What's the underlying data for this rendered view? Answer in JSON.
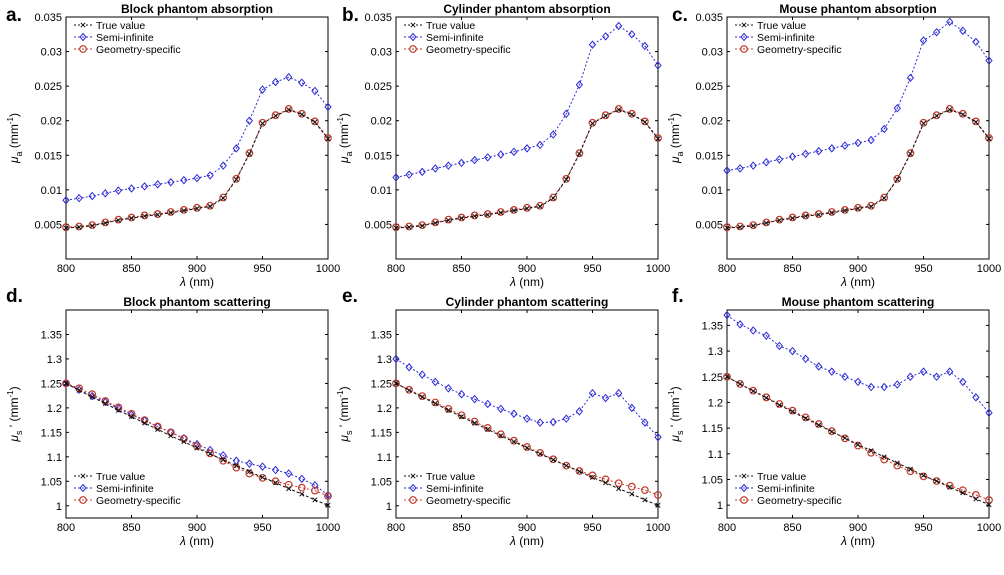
{
  "chart_data": [
    {
      "type": "line",
      "panel_label": "a.",
      "title": "Block phantom absorption",
      "xlabel_symbol": "λ",
      "xlabel_unit": " (nm)",
      "ylabel_symbol": "μ",
      "ylabel_sub": "a",
      "ylabel_pre": "(mm",
      "ylabel_exp": "-1",
      "ylabel_post": ")",
      "xlim": [
        800,
        1000
      ],
      "ylim": [
        0,
        0.035
      ],
      "xticks": [
        "800",
        "850",
        "900",
        "950",
        "1000"
      ],
      "yticks": [
        "0.005",
        "0.01",
        "0.015",
        "0.02",
        "0.025",
        "0.03",
        "0.035"
      ],
      "legend_position": "top-left",
      "x": [
        800,
        810,
        820,
        830,
        840,
        850,
        860,
        870,
        880,
        890,
        900,
        910,
        920,
        930,
        940,
        950,
        960,
        970,
        980,
        990,
        1000
      ],
      "series": [
        {
          "name": "True value",
          "marker": "x",
          "color": "#111111",
          "values": [
            0.0045,
            0.0046,
            0.0048,
            0.0052,
            0.0056,
            0.0059,
            0.0062,
            0.0064,
            0.0067,
            0.007,
            0.0073,
            0.0076,
            0.0088,
            0.0115,
            0.0152,
            0.0196,
            0.0207,
            0.0216,
            0.0209,
            0.0198,
            0.0174
          ]
        },
        {
          "name": "Semi-infinite",
          "marker": "diamond",
          "color": "#2b2bd6",
          "values": [
            0.0085,
            0.0088,
            0.0091,
            0.0095,
            0.0099,
            0.0102,
            0.0105,
            0.0108,
            0.0111,
            0.0114,
            0.0117,
            0.0121,
            0.0135,
            0.016,
            0.02,
            0.0245,
            0.0256,
            0.0263,
            0.0255,
            0.0243,
            0.022
          ]
        },
        {
          "name": "Geometry-specific",
          "marker": "circle",
          "color": "#c0392b",
          "values": [
            0.0046,
            0.0047,
            0.0049,
            0.0053,
            0.0057,
            0.006,
            0.0063,
            0.0065,
            0.0068,
            0.0071,
            0.0074,
            0.0077,
            0.0089,
            0.0116,
            0.0153,
            0.0197,
            0.0208,
            0.0217,
            0.021,
            0.0199,
            0.0175
          ]
        }
      ]
    },
    {
      "type": "line",
      "panel_label": "b.",
      "title": "Cylinder phantom absorption",
      "xlabel_symbol": "λ",
      "xlabel_unit": " (nm)",
      "ylabel_symbol": "μ",
      "ylabel_sub": "a",
      "ylabel_pre": "(mm",
      "ylabel_exp": "-1",
      "ylabel_post": ")",
      "xlim": [
        800,
        1000
      ],
      "ylim": [
        0,
        0.035
      ],
      "xticks": [
        "800",
        "850",
        "900",
        "950",
        "1000"
      ],
      "yticks": [
        "0.005",
        "0.01",
        "0.015",
        "0.02",
        "0.025",
        "0.03",
        "0.035"
      ],
      "legend_position": "top-left",
      "x": [
        800,
        810,
        820,
        830,
        840,
        850,
        860,
        870,
        880,
        890,
        900,
        910,
        920,
        930,
        940,
        950,
        960,
        970,
        980,
        990,
        1000
      ],
      "series": [
        {
          "name": "True value",
          "marker": "x",
          "color": "#111111",
          "values": [
            0.0045,
            0.0046,
            0.0048,
            0.0052,
            0.0056,
            0.0059,
            0.0062,
            0.0064,
            0.0067,
            0.007,
            0.0073,
            0.0076,
            0.0088,
            0.0115,
            0.0152,
            0.0196,
            0.0207,
            0.0216,
            0.0209,
            0.0198,
            0.0174
          ]
        },
        {
          "name": "Semi-infinite",
          "marker": "diamond",
          "color": "#2b2bd6",
          "values": [
            0.0118,
            0.0122,
            0.0126,
            0.0131,
            0.0135,
            0.0139,
            0.0143,
            0.0147,
            0.0151,
            0.0155,
            0.016,
            0.0165,
            0.018,
            0.021,
            0.0252,
            0.031,
            0.0322,
            0.0337,
            0.0325,
            0.0308,
            0.028
          ]
        },
        {
          "name": "Geometry-specific",
          "marker": "circle",
          "color": "#c0392b",
          "values": [
            0.0046,
            0.0047,
            0.0049,
            0.0053,
            0.0057,
            0.006,
            0.0063,
            0.0065,
            0.0068,
            0.0071,
            0.0074,
            0.0077,
            0.0089,
            0.0116,
            0.0153,
            0.0197,
            0.0208,
            0.0217,
            0.021,
            0.0199,
            0.0175
          ]
        }
      ]
    },
    {
      "type": "line",
      "panel_label": "c.",
      "title": "Mouse phantom absorption",
      "xlabel_symbol": "λ",
      "xlabel_unit": " (nm)",
      "ylabel_symbol": "μ",
      "ylabel_sub": "a",
      "ylabel_pre": "(mm",
      "ylabel_exp": "-1",
      "ylabel_post": ")",
      "xlim": [
        800,
        1000
      ],
      "ylim": [
        0,
        0.035
      ],
      "xticks": [
        "800",
        "850",
        "900",
        "950",
        "1000"
      ],
      "yticks": [
        "0.005",
        "0.01",
        "0.015",
        "0.02",
        "0.025",
        "0.03",
        "0.035"
      ],
      "legend_position": "top-left",
      "x": [
        800,
        810,
        820,
        830,
        840,
        850,
        860,
        870,
        880,
        890,
        900,
        910,
        920,
        930,
        940,
        950,
        960,
        970,
        980,
        990,
        1000
      ],
      "series": [
        {
          "name": "True value",
          "marker": "x",
          "color": "#111111",
          "values": [
            0.0045,
            0.0046,
            0.0048,
            0.0052,
            0.0056,
            0.0059,
            0.0062,
            0.0064,
            0.0067,
            0.007,
            0.0073,
            0.0076,
            0.0088,
            0.0115,
            0.0152,
            0.0196,
            0.0207,
            0.0216,
            0.0209,
            0.0198,
            0.0174
          ]
        },
        {
          "name": "Semi-infinite",
          "marker": "diamond",
          "color": "#2b2bd6",
          "values": [
            0.0128,
            0.0131,
            0.0135,
            0.014,
            0.0144,
            0.0148,
            0.0152,
            0.0156,
            0.016,
            0.0164,
            0.0168,
            0.0172,
            0.0188,
            0.0218,
            0.0262,
            0.0316,
            0.0328,
            0.0343,
            0.033,
            0.0314,
            0.0287
          ]
        },
        {
          "name": "Geometry-specific",
          "marker": "circle",
          "color": "#c0392b",
          "values": [
            0.0046,
            0.0047,
            0.0049,
            0.0053,
            0.0057,
            0.006,
            0.0063,
            0.0065,
            0.0068,
            0.0071,
            0.0074,
            0.0077,
            0.0089,
            0.0116,
            0.0153,
            0.0197,
            0.0208,
            0.0217,
            0.021,
            0.0199,
            0.0175
          ]
        }
      ]
    },
    {
      "type": "line",
      "panel_label": "d.",
      "title": "Block phantom scattering",
      "xlabel_symbol": "λ",
      "xlabel_unit": " (nm)",
      "ylabel_symbol": "μ",
      "ylabel_sub": "s",
      "ylabel_pre": "' (mm",
      "ylabel_exp": "-1",
      "ylabel_post": ")",
      "xlim": [
        800,
        1000
      ],
      "ylim": [
        0.975,
        1.4
      ],
      "xticks": [
        "800",
        "850",
        "900",
        "950",
        "1000"
      ],
      "yticks": [
        "1",
        "1.05",
        "1.1",
        "1.15",
        "1.2",
        "1.25",
        "1.3",
        "1.35"
      ],
      "legend_position": "bottom-left",
      "x": [
        800,
        810,
        820,
        830,
        840,
        850,
        860,
        870,
        880,
        890,
        900,
        910,
        920,
        930,
        940,
        950,
        960,
        970,
        980,
        990,
        1000
      ],
      "series": [
        {
          "name": "True value",
          "marker": "x",
          "color": "#111111",
          "values": [
            1.25,
            1.236,
            1.222,
            1.209,
            1.195,
            1.182,
            1.169,
            1.156,
            1.143,
            1.131,
            1.118,
            1.106,
            1.094,
            1.082,
            1.07,
            1.058,
            1.047,
            1.035,
            1.024,
            1.012,
            1.001
          ]
        },
        {
          "name": "Semi-infinite",
          "marker": "diamond",
          "color": "#2b2bd6",
          "values": [
            1.25,
            1.237,
            1.224,
            1.212,
            1.199,
            1.186,
            1.174,
            1.162,
            1.15,
            1.138,
            1.126,
            1.114,
            1.103,
            1.092,
            1.086,
            1.08,
            1.073,
            1.066,
            1.055,
            1.042,
            1.022
          ]
        },
        {
          "name": "Geometry-specific",
          "marker": "circle",
          "color": "#c0392b",
          "values": [
            1.25,
            1.24,
            1.228,
            1.214,
            1.201,
            1.188,
            1.175,
            1.162,
            1.15,
            1.137,
            1.122,
            1.107,
            1.092,
            1.078,
            1.066,
            1.057,
            1.05,
            1.043,
            1.037,
            1.031,
            1.02
          ]
        }
      ]
    },
    {
      "type": "line",
      "panel_label": "e.",
      "title": "Cylinder phantom scattering",
      "xlabel_symbol": "λ",
      "xlabel_unit": " (nm)",
      "ylabel_symbol": "μ",
      "ylabel_sub": "s",
      "ylabel_pre": "' (mm",
      "ylabel_exp": "-1",
      "ylabel_post": ")",
      "xlim": [
        800,
        1000
      ],
      "ylim": [
        0.975,
        1.4
      ],
      "xticks": [
        "800",
        "850",
        "900",
        "950",
        "1000"
      ],
      "yticks": [
        "1",
        "1.05",
        "1.1",
        "1.15",
        "1.2",
        "1.25",
        "1.3",
        "1.35"
      ],
      "legend_position": "bottom-left",
      "x": [
        800,
        810,
        820,
        830,
        840,
        850,
        860,
        870,
        880,
        890,
        900,
        910,
        920,
        930,
        940,
        950,
        960,
        970,
        980,
        990,
        1000
      ],
      "series": [
        {
          "name": "True value",
          "marker": "x",
          "color": "#111111",
          "values": [
            1.25,
            1.236,
            1.222,
            1.209,
            1.195,
            1.182,
            1.169,
            1.156,
            1.143,
            1.131,
            1.118,
            1.106,
            1.094,
            1.082,
            1.07,
            1.058,
            1.047,
            1.035,
            1.024,
            1.012,
            1.001
          ]
        },
        {
          "name": "Semi-infinite",
          "marker": "diamond",
          "color": "#2b2bd6",
          "values": [
            1.3,
            1.283,
            1.268,
            1.253,
            1.24,
            1.228,
            1.218,
            1.208,
            1.198,
            1.188,
            1.178,
            1.17,
            1.171,
            1.178,
            1.193,
            1.23,
            1.22,
            1.23,
            1.2,
            1.17,
            1.14
          ]
        },
        {
          "name": "Geometry-specific",
          "marker": "circle",
          "color": "#c0392b",
          "values": [
            1.25,
            1.237,
            1.224,
            1.211,
            1.198,
            1.185,
            1.172,
            1.159,
            1.146,
            1.133,
            1.12,
            1.108,
            1.095,
            1.082,
            1.071,
            1.062,
            1.054,
            1.046,
            1.039,
            1.032,
            1.022
          ]
        }
      ]
    },
    {
      "type": "line",
      "panel_label": "f.",
      "title": "Mouse phantom scattering",
      "xlabel_symbol": "λ",
      "xlabel_unit": " (nm)",
      "ylabel_symbol": "μ",
      "ylabel_sub": "s",
      "ylabel_pre": "' (mm",
      "ylabel_exp": "-1",
      "ylabel_post": ")",
      "xlim": [
        800,
        1000
      ],
      "ylim": [
        0.975,
        1.38
      ],
      "xticks": [
        "800",
        "850",
        "900",
        "950",
        "1000"
      ],
      "yticks": [
        "1",
        "1.05",
        "1.1",
        "1.15",
        "1.2",
        "1.25",
        "1.3",
        "1.35"
      ],
      "legend_position": "bottom-left",
      "x": [
        800,
        810,
        820,
        830,
        840,
        850,
        860,
        870,
        880,
        890,
        900,
        910,
        920,
        930,
        940,
        950,
        960,
        970,
        980,
        990,
        1000
      ],
      "series": [
        {
          "name": "True value",
          "marker": "x",
          "color": "#111111",
          "values": [
            1.25,
            1.236,
            1.222,
            1.209,
            1.195,
            1.182,
            1.169,
            1.156,
            1.143,
            1.131,
            1.118,
            1.106,
            1.094,
            1.082,
            1.07,
            1.058,
            1.047,
            1.035,
            1.024,
            1.012,
            1.001
          ]
        },
        {
          "name": "Semi-infinite",
          "marker": "diamond",
          "color": "#2b2bd6",
          "values": [
            1.37,
            1.352,
            1.34,
            1.33,
            1.31,
            1.3,
            1.285,
            1.27,
            1.26,
            1.25,
            1.24,
            1.23,
            1.23,
            1.235,
            1.25,
            1.26,
            1.25,
            1.26,
            1.24,
            1.21,
            1.18
          ]
        },
        {
          "name": "Geometry-specific",
          "marker": "circle",
          "color": "#c0392b",
          "values": [
            1.25,
            1.236,
            1.223,
            1.21,
            1.197,
            1.184,
            1.171,
            1.158,
            1.144,
            1.13,
            1.116,
            1.102,
            1.089,
            1.077,
            1.066,
            1.056,
            1.047,
            1.038,
            1.029,
            1.02,
            1.01
          ]
        }
      ]
    }
  ]
}
